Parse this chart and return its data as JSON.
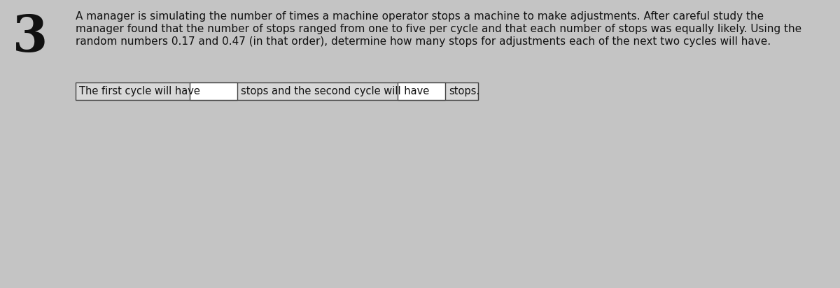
{
  "question_number": "3",
  "question_number_fontsize": 52,
  "paragraph_line1": "A manager is simulating the number of times a machine operator stops a machine to make adjustments. After careful study the",
  "paragraph_line2": "manager found that the number of stops ranged from one to five per cycle and that each number of stops was equally likely. Using the",
  "paragraph_line3": "random numbers 0.17 and 0.47 (in that order), determine how many stops for adjustments each of the next two cycles will have.",
  "paragraph_fontsize": 11.0,
  "fill_sentence_fontsize": 10.5,
  "label1": "The first cycle will have",
  "label2": "stops and the second cycle will have",
  "label3": "stops.",
  "background_color": "#c4c4c4",
  "text_color": "#111111",
  "box_bg_color": "#ffffff",
  "box_border_color": "#444444",
  "row_bg_color": "#d8d8d8",
  "row_border_color": "#444444"
}
